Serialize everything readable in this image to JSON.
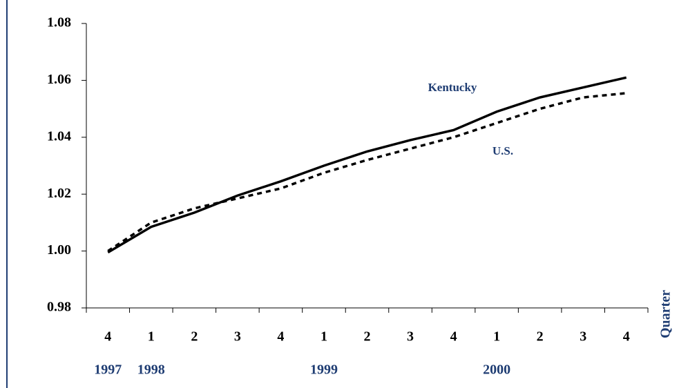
{
  "chart_data": {
    "type": "line",
    "x_label": "Quarter",
    "categories": [
      "4",
      "1",
      "2",
      "3",
      "4",
      "1",
      "2",
      "3",
      "4",
      "1",
      "2",
      "3",
      "4"
    ],
    "year_labels": [
      "1997",
      "1998",
      null,
      null,
      null,
      "1999",
      null,
      null,
      null,
      "2000",
      null,
      null,
      null
    ],
    "series": [
      {
        "name": "Kentucky",
        "color": "#000000",
        "line_style": "solid",
        "values": [
          0.9995,
          1.0085,
          1.0135,
          1.0195,
          1.0245,
          1.03,
          1.035,
          1.039,
          1.0425,
          1.049,
          1.054,
          1.0575,
          1.061
        ]
      },
      {
        "name": "U.S.",
        "color": "#000000",
        "line_style": "dashed",
        "values": [
          1.0,
          1.01,
          1.015,
          1.0185,
          1.022,
          1.0275,
          1.032,
          1.036,
          1.04,
          1.045,
          1.05,
          1.054,
          1.0555
        ]
      }
    ],
    "ylim": [
      0.98,
      1.08
    ],
    "yticks": [
      0.98,
      {
        "value": 1.0,
        "label": "1.00"
      },
      1.02,
      1.04,
      1.06,
      1.08
    ]
  }
}
